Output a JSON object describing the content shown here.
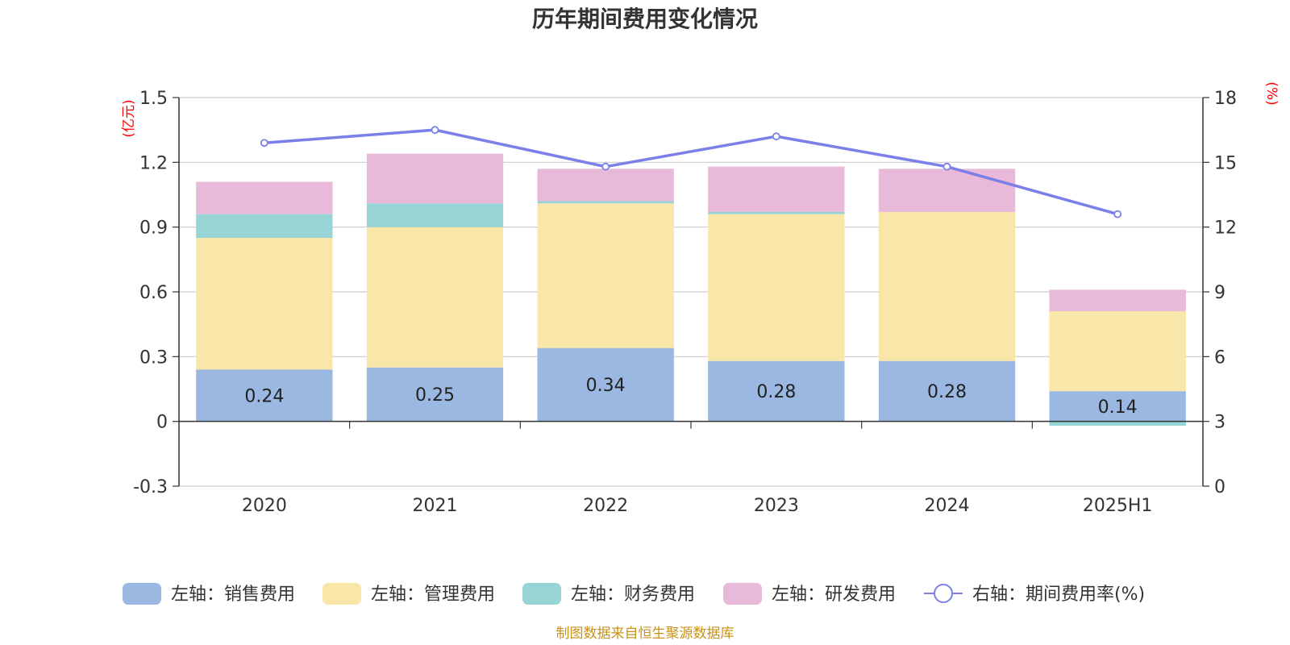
{
  "chart_data": {
    "type": "bar",
    "title": "历年期间费用变化情况",
    "categories": [
      "2020",
      "2021",
      "2022",
      "2023",
      "2024",
      "2025H1"
    ],
    "left_axis": {
      "unit": "(亿元)",
      "ylim": [
        -0.3,
        1.5
      ],
      "ticks": [
        "-0.3",
        "0",
        "0.3",
        "0.6",
        "0.9",
        "1.2",
        "1.5"
      ]
    },
    "right_axis": {
      "unit": "(%)",
      "ylim": [
        0,
        18
      ],
      "ticks": [
        "0",
        "3",
        "6",
        "9",
        "12",
        "15",
        "18"
      ]
    },
    "series": [
      {
        "name": "左轴：销售费用",
        "type": "bar",
        "stack": "left",
        "color": "#9bb8e3",
        "values": [
          0.24,
          0.25,
          0.34,
          0.28,
          0.28,
          0.14
        ],
        "data_labels": [
          "0.24",
          "0.25",
          "0.34",
          "0.28",
          "0.28",
          "0.14"
        ]
      },
      {
        "name": "左轴：管理费用",
        "type": "bar",
        "stack": "left",
        "color": "#f8e7a8",
        "values": [
          0.61,
          0.65,
          0.67,
          0.68,
          0.69,
          0.37
        ]
      },
      {
        "name": "左轴：财务费用",
        "type": "bar",
        "stack": "left",
        "color": "#97d4d6",
        "values": [
          0.11,
          0.11,
          0.01,
          0.01,
          0.0,
          -0.02
        ]
      },
      {
        "name": "左轴：研发费用",
        "type": "bar",
        "stack": "left",
        "color": "#e8b9d9",
        "values": [
          0.15,
          0.23,
          0.15,
          0.21,
          0.2,
          0.1
        ]
      },
      {
        "name": "右轴：期间费用率(%)",
        "type": "line",
        "axis": "right",
        "color": "#7b7fe8",
        "values": [
          15.9,
          16.5,
          14.8,
          16.2,
          14.8,
          12.6
        ]
      }
    ],
    "grid": true,
    "legend_position": "bottom"
  },
  "source_note": "制图数据来自恒生聚源数据库"
}
